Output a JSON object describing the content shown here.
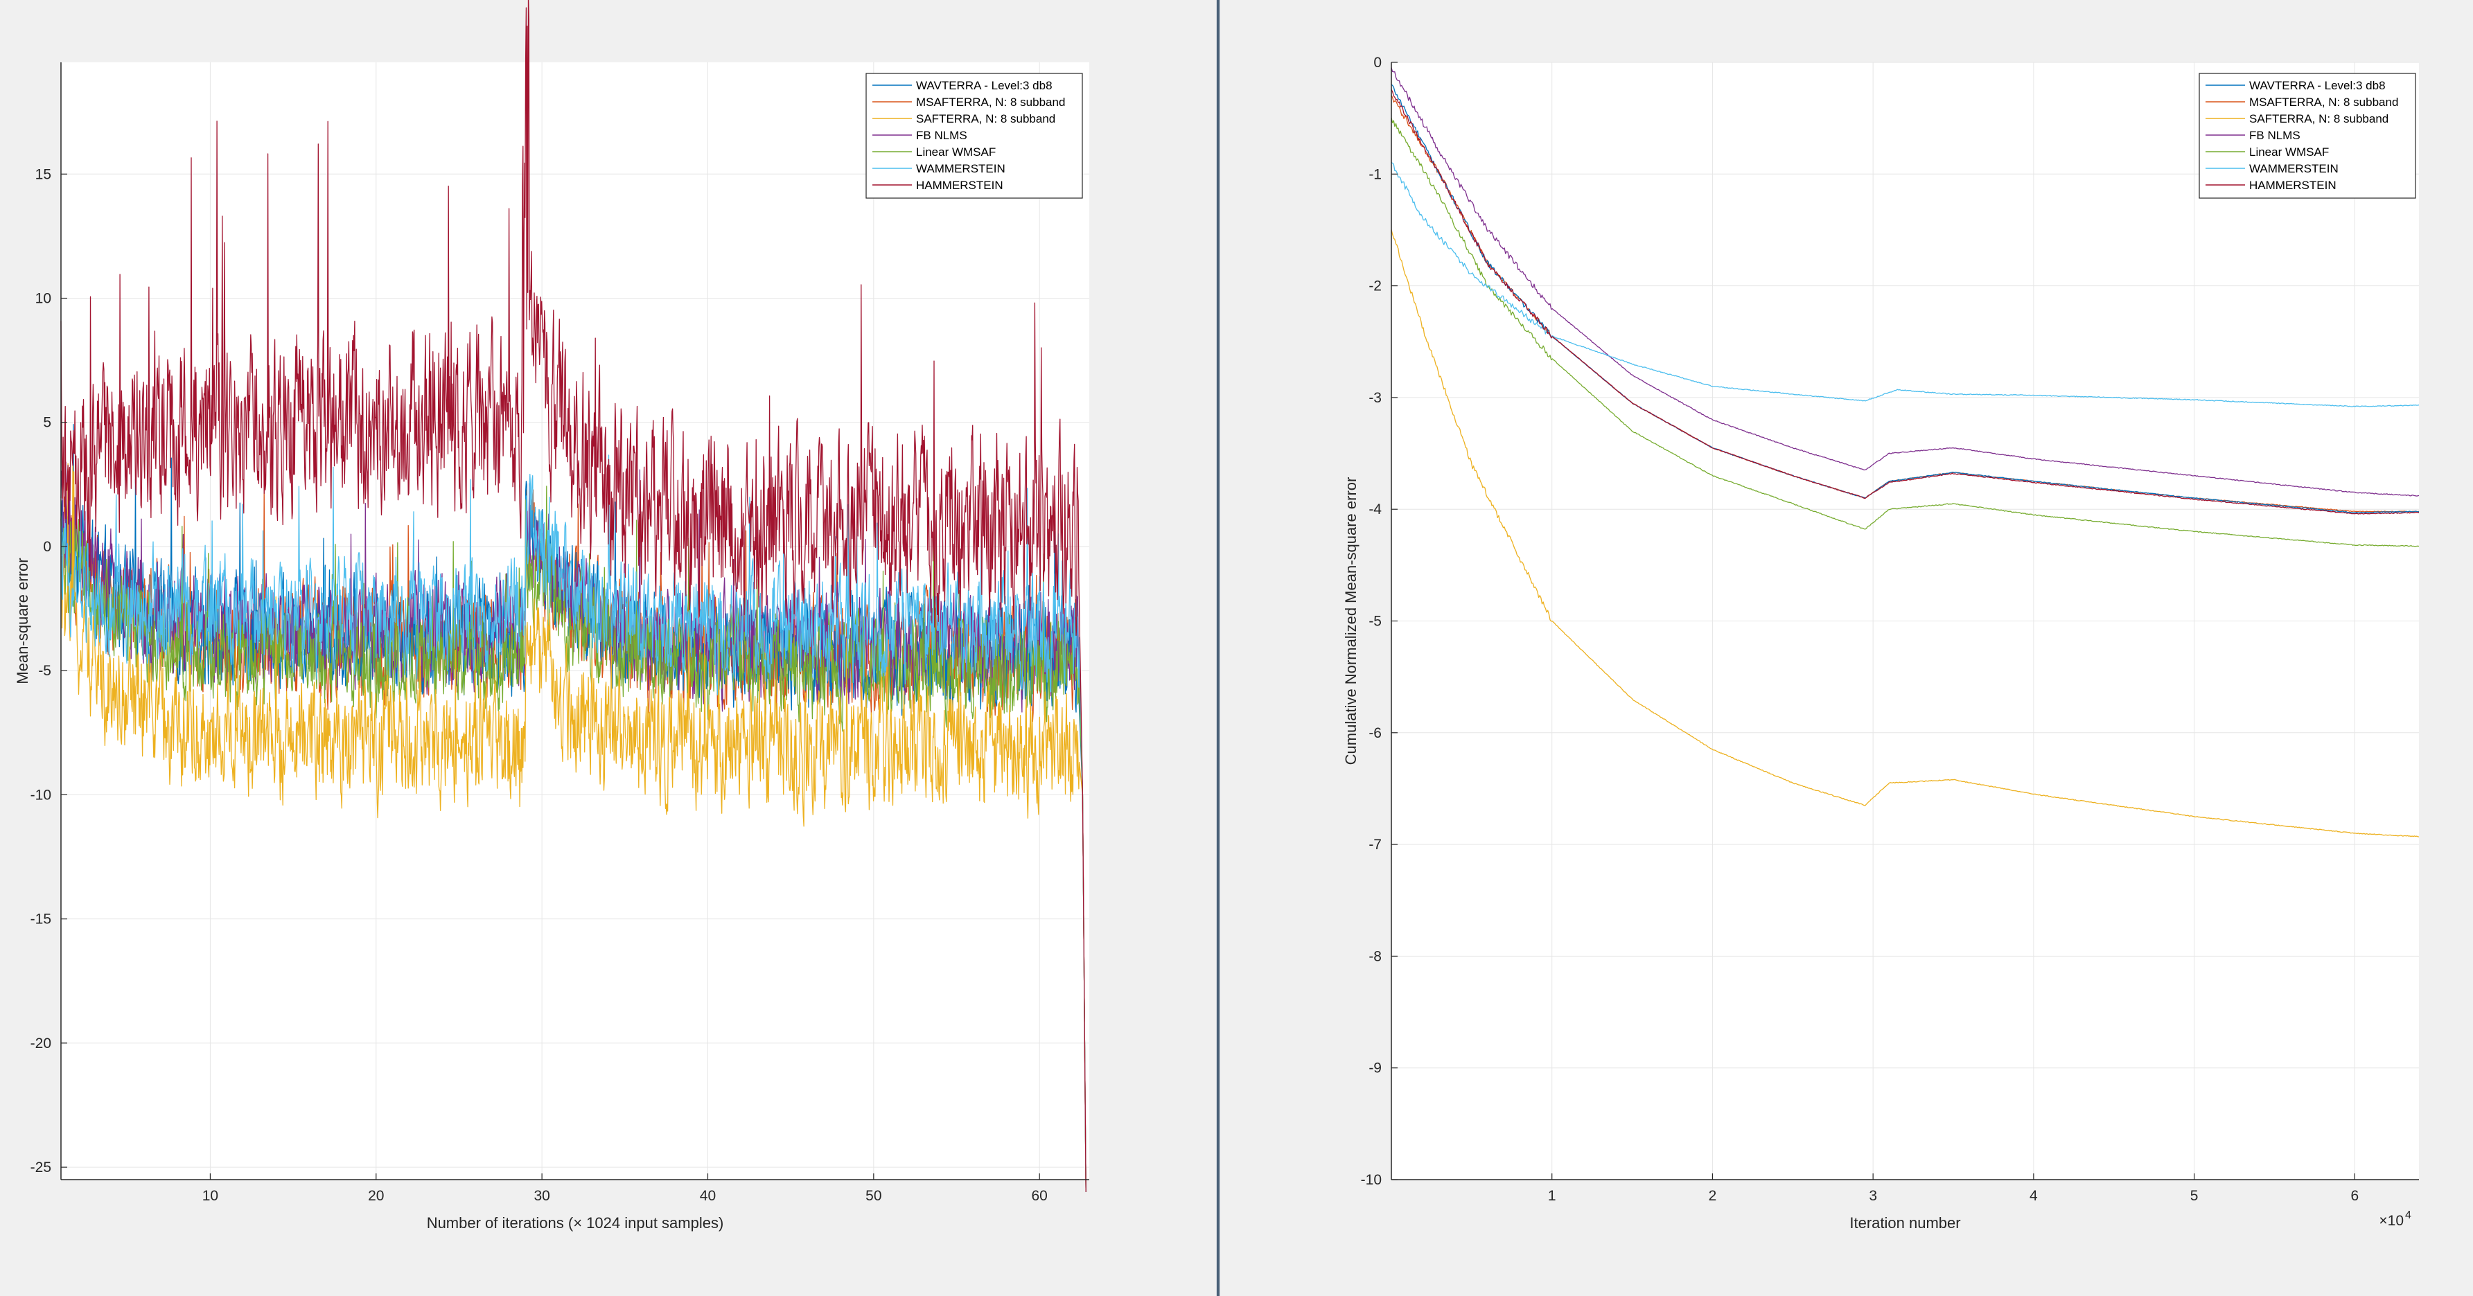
{
  "chart_data": [
    {
      "type": "line",
      "xlabel": "Number of iterations (× 1024 input samples)",
      "ylabel": "Mean-square error",
      "xlim": [
        1,
        63
      ],
      "ylim": [
        -25.5,
        19.5
      ],
      "xticks": [
        10,
        20,
        30,
        40,
        50,
        60
      ],
      "yticks": [
        -25,
        -20,
        -15,
        -10,
        -5,
        0,
        5,
        10,
        15
      ],
      "grid": true,
      "legend_position": "top-right",
      "series": [
        {
          "name": "WAVTERRA - Level:3 db8",
          "color": "#0072BD",
          "pre": -3.6,
          "post": -4.3,
          "noise": 1.1,
          "start": 0.3
        },
        {
          "name": "MSAFTERRA, N: 8 subband",
          "color": "#D95319",
          "pre": -3.8,
          "post": -4.4,
          "noise": 1.1,
          "start": 0.2
        },
        {
          "name": "SAFTERRA, N: 8 subband",
          "color": "#EDB120",
          "pre": -8.0,
          "post": -8.2,
          "noise": 1.2,
          "start": -2.0
        },
        {
          "name": "FB NLMS",
          "color": "#7E2F8E",
          "pre": -3.6,
          "post": -4.1,
          "noise": 1.1,
          "start": 0.8
        },
        {
          "name": "Linear WMSAF",
          "color": "#77AC30",
          "pre": -4.5,
          "post": -4.9,
          "noise": 1.0,
          "start": 0.0
        },
        {
          "name": "WAMMERSTEIN",
          "color": "#4DBEEE",
          "pre": -2.8,
          "post": -3.3,
          "noise": 1.1,
          "start": -1.0
        },
        {
          "name": "HAMMERSTEIN",
          "color": "#A2142F",
          "pre": 5.0,
          "post": 0.8,
          "noise": 1.8,
          "start": 2.0
        }
      ]
    },
    {
      "type": "line",
      "xlabel": "Iteration number",
      "ylabel": "Cumulative Normalized Mean-square error",
      "x_exponent": "×10",
      "x_exponent_power": "4",
      "xlim": [
        0,
        6.4
      ],
      "ylim": [
        -10,
        0
      ],
      "xticks": [
        1,
        2,
        3,
        4,
        5,
        6
      ],
      "yticks": [
        -10,
        -9,
        -8,
        -7,
        -6,
        -5,
        -4,
        -3,
        -2,
        -1,
        0
      ],
      "grid": true,
      "legend_position": "top-right",
      "series": [
        {
          "name": "WAVTERRA - Level:3 db8",
          "color": "#0072BD",
          "points": [
            [
              0,
              -0.2
            ],
            [
              0.3,
              -1.0
            ],
            [
              0.6,
              -1.8
            ],
            [
              1,
              -2.45
            ],
            [
              1.5,
              -3.05
            ],
            [
              2,
              -3.45
            ],
            [
              2.5,
              -3.7
            ],
            [
              2.95,
              -3.9
            ],
            [
              3.1,
              -3.75
            ],
            [
              3.5,
              -3.67
            ],
            [
              4,
              -3.75
            ],
            [
              5,
              -3.9
            ],
            [
              6,
              -4.03
            ],
            [
              6.4,
              -4.02
            ]
          ]
        },
        {
          "name": "MSAFTERRA, N: 8 subband",
          "color": "#D95319",
          "points": [
            [
              0,
              -0.3
            ],
            [
              0.3,
              -1.0
            ],
            [
              0.6,
              -1.8
            ],
            [
              1,
              -2.45
            ],
            [
              1.5,
              -3.05
            ],
            [
              2,
              -3.45
            ],
            [
              2.5,
              -3.7
            ],
            [
              2.95,
              -3.9
            ],
            [
              3.1,
              -3.75
            ],
            [
              3.5,
              -3.67
            ],
            [
              4,
              -3.75
            ],
            [
              5,
              -3.9
            ],
            [
              6,
              -4.02
            ],
            [
              6.4,
              -4.02
            ]
          ]
        },
        {
          "name": "SAFTERRA, N: 8 subband",
          "color": "#EDB120",
          "points": [
            [
              0,
              -1.5
            ],
            [
              0.2,
              -2.4
            ],
            [
              0.5,
              -3.6
            ],
            [
              1,
              -5.0
            ],
            [
              1.5,
              -5.7
            ],
            [
              2,
              -6.15
            ],
            [
              2.5,
              -6.45
            ],
            [
              2.95,
              -6.65
            ],
            [
              3.1,
              -6.45
            ],
            [
              3.5,
              -6.42
            ],
            [
              4,
              -6.55
            ],
            [
              5,
              -6.75
            ],
            [
              6,
              -6.9
            ],
            [
              6.4,
              -6.93
            ]
          ]
        },
        {
          "name": "FB NLMS",
          "color": "#7E2F8E",
          "points": [
            [
              0,
              -0.05
            ],
            [
              0.3,
              -0.8
            ],
            [
              0.6,
              -1.5
            ],
            [
              1,
              -2.2
            ],
            [
              1.5,
              -2.8
            ],
            [
              2,
              -3.2
            ],
            [
              2.5,
              -3.45
            ],
            [
              2.95,
              -3.65
            ],
            [
              3.1,
              -3.5
            ],
            [
              3.5,
              -3.45
            ],
            [
              4,
              -3.55
            ],
            [
              5,
              -3.7
            ],
            [
              6,
              -3.85
            ],
            [
              6.4,
              -3.88
            ]
          ]
        },
        {
          "name": "Linear WMSAF",
          "color": "#77AC30",
          "points": [
            [
              0,
              -0.5
            ],
            [
              0.3,
              -1.2
            ],
            [
              0.6,
              -2.0
            ],
            [
              1,
              -2.65
            ],
            [
              1.5,
              -3.3
            ],
            [
              2,
              -3.7
            ],
            [
              2.5,
              -3.95
            ],
            [
              2.95,
              -4.18
            ],
            [
              3.1,
              -4.0
            ],
            [
              3.5,
              -3.95
            ],
            [
              4,
              -4.05
            ],
            [
              5,
              -4.2
            ],
            [
              6,
              -4.32
            ],
            [
              6.4,
              -4.33
            ]
          ]
        },
        {
          "name": "WAMMERSTEIN",
          "color": "#4DBEEE",
          "points": [
            [
              0,
              -0.9
            ],
            [
              0.2,
              -1.4
            ],
            [
              0.5,
              -1.9
            ],
            [
              1,
              -2.45
            ],
            [
              1.5,
              -2.7
            ],
            [
              2,
              -2.9
            ],
            [
              2.5,
              -2.97
            ],
            [
              2.95,
              -3.03
            ],
            [
              3.15,
              -2.93
            ],
            [
              3.5,
              -2.97
            ],
            [
              4,
              -2.98
            ],
            [
              5,
              -3.02
            ],
            [
              6,
              -3.08
            ],
            [
              6.4,
              -3.07
            ]
          ]
        },
        {
          "name": "HAMMERSTEIN",
          "color": "#A2142F",
          "points": [
            [
              0,
              -0.25
            ],
            [
              0.3,
              -1.0
            ],
            [
              0.6,
              -1.8
            ],
            [
              1,
              -2.45
            ],
            [
              1.5,
              -3.05
            ],
            [
              2,
              -3.45
            ],
            [
              2.5,
              -3.7
            ],
            [
              2.95,
              -3.9
            ],
            [
              3.1,
              -3.76
            ],
            [
              3.5,
              -3.68
            ],
            [
              4,
              -3.76
            ],
            [
              5,
              -3.91
            ],
            [
              6,
              -4.04
            ],
            [
              6.4,
              -4.03
            ]
          ]
        }
      ]
    }
  ]
}
